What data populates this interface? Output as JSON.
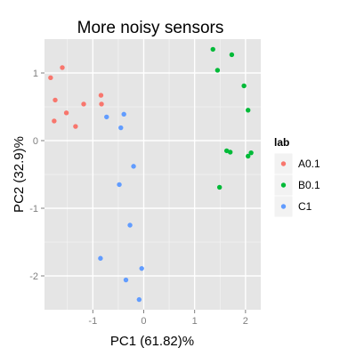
{
  "chart_data": {
    "type": "scatter",
    "title": "More noisy sensors",
    "xlabel": "PC1 (61.82)%",
    "ylabel": "PC2 (32.9)%",
    "xlim": [
      -1.95,
      2.3
    ],
    "ylim": [
      -2.5,
      1.5
    ],
    "xticks": [
      -1,
      0,
      1,
      2
    ],
    "yticks": [
      -2,
      -1,
      0,
      1
    ],
    "grid": true,
    "legend_position": "right",
    "legend_title": "lab",
    "series": [
      {
        "name": "A0.1",
        "color": "#f8766d",
        "points": [
          {
            "x": -1.6,
            "y": 1.08
          },
          {
            "x": -1.83,
            "y": 0.93
          },
          {
            "x": -1.74,
            "y": 0.6
          },
          {
            "x": -1.52,
            "y": 0.41
          },
          {
            "x": -1.76,
            "y": 0.29
          },
          {
            "x": -1.34,
            "y": 0.21
          },
          {
            "x": -1.18,
            "y": 0.54
          },
          {
            "x": -0.84,
            "y": 0.67
          },
          {
            "x": -0.83,
            "y": 0.54
          }
        ]
      },
      {
        "name": "B0.1",
        "color": "#00ba38",
        "points": [
          {
            "x": 1.36,
            "y": 1.35
          },
          {
            "x": 1.73,
            "y": 1.27
          },
          {
            "x": 1.45,
            "y": 1.04
          },
          {
            "x": 1.97,
            "y": 0.81
          },
          {
            "x": 2.05,
            "y": 0.45
          },
          {
            "x": 1.63,
            "y": -0.15
          },
          {
            "x": 1.7,
            "y": -0.17
          },
          {
            "x": 2.11,
            "y": -0.18
          },
          {
            "x": 2.05,
            "y": -0.23
          },
          {
            "x": 1.49,
            "y": -0.69
          }
        ]
      },
      {
        "name": "C1",
        "color": "#619cff",
        "points": [
          {
            "x": -0.73,
            "y": 0.35
          },
          {
            "x": -0.39,
            "y": 0.39
          },
          {
            "x": -0.45,
            "y": 0.19
          },
          {
            "x": -0.2,
            "y": -0.38
          },
          {
            "x": -0.48,
            "y": -0.65
          },
          {
            "x": -0.27,
            "y": -1.25
          },
          {
            "x": -0.85,
            "y": -1.74
          },
          {
            "x": -0.04,
            "y": -1.89
          },
          {
            "x": -0.35,
            "y": -2.06
          },
          {
            "x": -0.09,
            "y": -2.35
          }
        ]
      }
    ]
  }
}
